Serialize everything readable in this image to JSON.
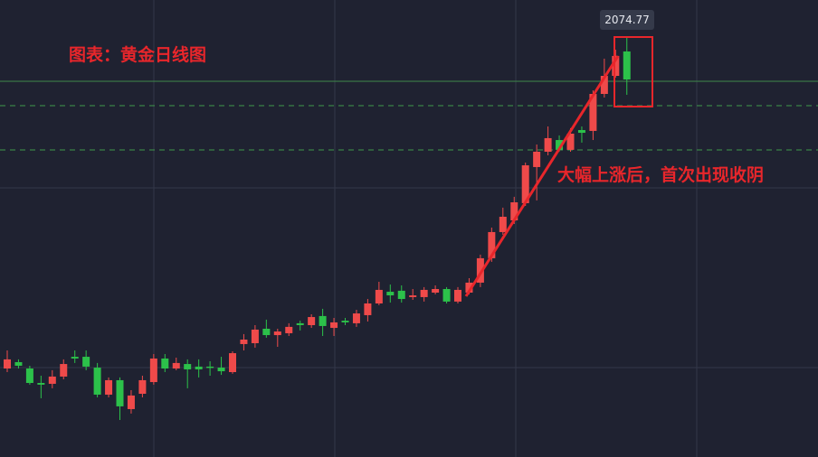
{
  "chart_data": {
    "type": "candlestick",
    "title": "图表：黄金日线图",
    "annotation": "大幅上涨后，首次出现收阴",
    "up_color": "#ef4a4a",
    "down_color": "#2cc14a",
    "ylim": [
      1784.75,
      2101
    ],
    "open": [
      1846,
      1850.4,
      1846,
      1836,
      1835.4,
      1840.4,
      1854.1,
      1854.1,
      1846.6,
      1827.9,
      1837.9,
      1817.9,
      1828.5,
      1836.6,
      1852.9,
      1846,
      1849.1,
      1847.3,
      1847.3,
      1846.6,
      1843.5,
      1862.9,
      1863.5,
      1873.5,
      1869.1,
      1870.4,
      1877.3,
      1876,
      1882.3,
      1874.1,
      1879.1,
      1877.3,
      1882.9,
      1891,
      1899.1,
      1899.8,
      1895.4,
      1895.4,
      1898.5,
      1901,
      1892.3,
      1898.5,
      1905.4,
      1922.3,
      1940.4,
      1948.5,
      1960.4,
      1985.4,
      1996,
      2004.1,
      1997.3,
      2011,
      2010.4,
      2036,
      2048.5,
      2065.4
    ],
    "high": [
      1858.5,
      1852.3,
      1847.9,
      1841,
      1844.8,
      1852.3,
      1858.5,
      1858.5,
      1849.8,
      1839.8,
      1839.8,
      1831,
      1841,
      1856,
      1856,
      1853.5,
      1852.3,
      1852.3,
      1851,
      1854.1,
      1857.9,
      1869.8,
      1876,
      1879.8,
      1873.5,
      1877.3,
      1879.1,
      1883.5,
      1887.3,
      1881,
      1881,
      1886.6,
      1894.1,
      1906,
      1904.1,
      1903.5,
      1901,
      1902.3,
      1903.5,
      1902.3,
      1902.3,
      1908.5,
      1924.8,
      1943.5,
      1957.3,
      1964.8,
      1988.5,
      2001,
      2013.5,
      2007.3,
      2012.3,
      2013.5,
      2038.5,
      2060.4,
      2066.6,
      2074.77
    ],
    "low": [
      1843.5,
      1846,
      1834.8,
      1825.4,
      1832.3,
      1838.5,
      1849.8,
      1844.8,
      1826,
      1826,
      1810.4,
      1814.8,
      1826,
      1834.8,
      1843.5,
      1844.8,
      1832.3,
      1839.8,
      1841,
      1841.6,
      1842.3,
      1858.5,
      1860.4,
      1867.3,
      1861,
      1868.5,
      1872.3,
      1874.1,
      1868.5,
      1868.5,
      1876,
      1874.8,
      1878.5,
      1889.8,
      1891.6,
      1891.6,
      1893.5,
      1892.3,
      1897.3,
      1891,
      1891,
      1897.3,
      1902.3,
      1919.8,
      1938.5,
      1946,
      1958.5,
      1962.3,
      1993.5,
      1996,
      1996,
      2002.3,
      2004.1,
      2033.5,
      2047.3,
      2035.4
    ],
    "close": [
      1852.3,
      1847.9,
      1836,
      1834.8,
      1840.4,
      1849.1,
      1852.9,
      1847.3,
      1827.9,
      1837.9,
      1819.8,
      1827.3,
      1837.9,
      1852.9,
      1846,
      1849.8,
      1845.4,
      1845.4,
      1846.6,
      1844.1,
      1856.6,
      1866,
      1872.9,
      1869.1,
      1871.6,
      1874.8,
      1876,
      1881.6,
      1875.4,
      1877.9,
      1877.9,
      1884.1,
      1891,
      1900.4,
      1896.6,
      1894.1,
      1896.6,
      1900.4,
      1901,
      1892.3,
      1900.4,
      1905.4,
      1922.3,
      1940.4,
      1951,
      1961,
      1986.6,
      1996,
      2005.4,
      1997.3,
      2008.5,
      2009.1,
      2036,
      2048.5,
      2062.3,
      2046
    ]
  }
}
